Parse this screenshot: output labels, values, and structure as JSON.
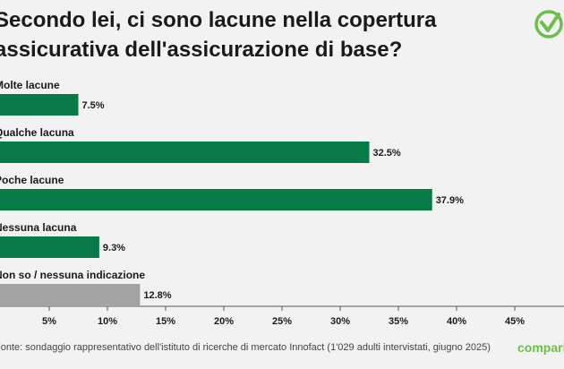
{
  "title": "Secondo lei, ci sono lacune nella copertura assicurativa dell'assicurazione di base?",
  "source": "Fonte: sondaggio rappresentativo dell'istituto di ricerche di mercato Innofact (1'029 adulti intervistati, giugno 2025)",
  "brand": "comparis",
  "colors": {
    "primary": "#077a47",
    "neutral": "#a3a3a3",
    "brand": "#6cc04a"
  },
  "chart_data": {
    "type": "bar",
    "orientation": "horizontal",
    "title": "Secondo lei, ci sono lacune nella copertura assicurativa dell'assicurazione di base?",
    "categories": [
      "Molte lacune",
      "Qualche lacuna",
      "Poche lacune",
      "Nessuna lacuna",
      "Non so / nessuna indicazione"
    ],
    "values": [
      7.5,
      32.5,
      37.9,
      9.3,
      12.8
    ],
    "value_labels": [
      "7.5%",
      "32.5%",
      "37.9%",
      "9.3%",
      "12.8%"
    ],
    "bar_colors": [
      "#077a47",
      "#077a47",
      "#077a47",
      "#077a47",
      "#a3a3a3"
    ],
    "xlim": [
      0,
      50
    ],
    "xticks": [
      5,
      10,
      15,
      20,
      25,
      30,
      35,
      40,
      45
    ],
    "xtick_labels": [
      "5%",
      "10%",
      "15%",
      "20%",
      "25%",
      "30%",
      "35%",
      "40%",
      "45%"
    ],
    "grid": false,
    "xlabel": "",
    "ylabel": ""
  }
}
